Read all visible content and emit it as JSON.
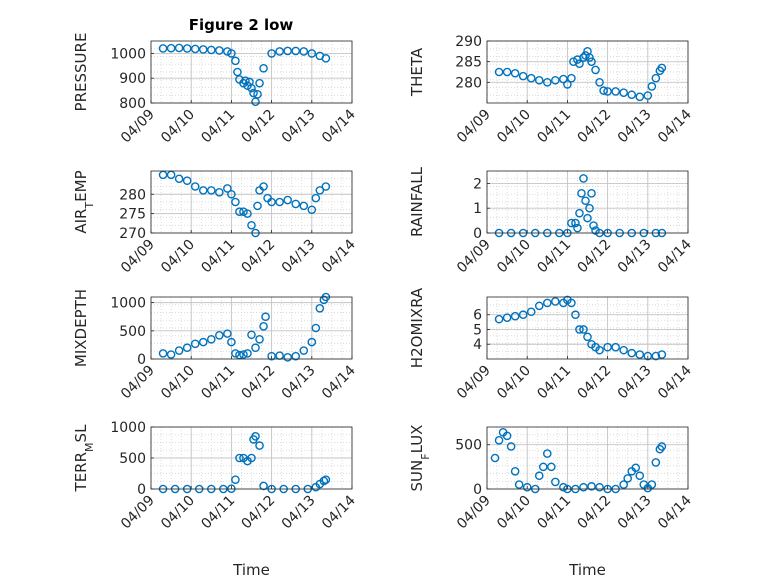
{
  "figure": {
    "title": "Figure 2 low",
    "marker_color": "#0072BD"
  },
  "chart_data": [
    {
      "type": "scatter",
      "title": "Figure 2 low",
      "ylabel": "PRESSURE",
      "xlabel": "",
      "ylim": [
        800,
        1050
      ],
      "yticks": [
        800,
        900,
        1000
      ],
      "xlim": [
        0,
        5
      ],
      "xticks": [
        0,
        1,
        2,
        3,
        4,
        5
      ],
      "xtick_labels": [
        "04/09",
        "04/10",
        "04/11",
        "04/12",
        "04/13",
        "04/14"
      ],
      "grid": true,
      "x": [
        0.3,
        0.5,
        0.7,
        0.9,
        1.1,
        1.3,
        1.5,
        1.7,
        1.9,
        2.0,
        2.1,
        2.15,
        2.2,
        2.3,
        2.35,
        2.4,
        2.45,
        2.5,
        2.55,
        2.6,
        2.65,
        2.7,
        2.8,
        3.0,
        3.2,
        3.4,
        3.6,
        3.8,
        4.0,
        4.2,
        4.35
      ],
      "y": [
        1020,
        1021,
        1022,
        1020,
        1018,
        1016,
        1014,
        1012,
        1008,
        1000,
        970,
        925,
        895,
        880,
        890,
        870,
        885,
        860,
        840,
        805,
        835,
        880,
        940,
        1000,
        1008,
        1010,
        1010,
        1008,
        1000,
        990,
        980
      ]
    },
    {
      "type": "scatter",
      "ylabel": "THETA",
      "xlabel": "",
      "ylim": [
        275,
        290
      ],
      "yticks": [
        280,
        285,
        290
      ],
      "xlim": [
        0,
        5
      ],
      "xticks": [
        0,
        1,
        2,
        3,
        4,
        5
      ],
      "xtick_labels": [
        "04/09",
        "04/10",
        "04/11",
        "04/12",
        "04/13",
        "04/14"
      ],
      "grid": true,
      "x": [
        0.3,
        0.5,
        0.7,
        0.9,
        1.1,
        1.3,
        1.5,
        1.7,
        1.9,
        2.0,
        2.1,
        2.15,
        2.25,
        2.3,
        2.4,
        2.45,
        2.5,
        2.55,
        2.6,
        2.7,
        2.8,
        2.9,
        3.0,
        3.2,
        3.4,
        3.6,
        3.8,
        4.0,
        4.1,
        4.2,
        4.3,
        4.35
      ],
      "y": [
        282.5,
        282.5,
        282.2,
        281.5,
        281.0,
        280.5,
        280.0,
        280.5,
        280.8,
        279.5,
        281.0,
        285.0,
        285.5,
        284.5,
        286.0,
        286.5,
        287.5,
        286.0,
        285.0,
        283.0,
        280.0,
        278.0,
        277.8,
        277.8,
        277.5,
        277.0,
        276.5,
        276.8,
        279.0,
        281.0,
        282.8,
        283.5
      ]
    },
    {
      "type": "scatter",
      "ylabel": "AIR_TEMP",
      "xlabel": "",
      "ylim": [
        270,
        286
      ],
      "yticks": [
        270,
        275,
        280
      ],
      "xlim": [
        0,
        5
      ],
      "xticks": [
        0,
        1,
        2,
        3,
        4,
        5
      ],
      "xtick_labels": [
        "04/09",
        "04/10",
        "04/11",
        "04/12",
        "04/13",
        "04/14"
      ],
      "grid": true,
      "x": [
        0.3,
        0.5,
        0.7,
        0.9,
        1.1,
        1.3,
        1.5,
        1.7,
        1.9,
        2.0,
        2.1,
        2.2,
        2.3,
        2.4,
        2.5,
        2.6,
        2.65,
        2.7,
        2.8,
        2.9,
        3.0,
        3.2,
        3.4,
        3.6,
        3.8,
        4.0,
        4.1,
        4.2,
        4.35
      ],
      "y": [
        285,
        285,
        284,
        283.5,
        282,
        281,
        281,
        280.5,
        281.5,
        280,
        278,
        275.5,
        275.5,
        275,
        272,
        270,
        277,
        281,
        282,
        279,
        278,
        278,
        278.5,
        277.5,
        277,
        276,
        279,
        281,
        282
      ]
    },
    {
      "type": "scatter",
      "ylabel": "RAINFALL",
      "xlabel": "",
      "ylim": [
        0,
        2.5
      ],
      "yticks": [
        0,
        1,
        2
      ],
      "xlim": [
        0,
        5
      ],
      "xticks": [
        0,
        1,
        2,
        3,
        4,
        5
      ],
      "xtick_labels": [
        "04/09",
        "04/10",
        "04/11",
        "04/12",
        "04/13",
        "04/14"
      ],
      "grid": true,
      "x": [
        0.3,
        0.6,
        0.9,
        1.2,
        1.5,
        1.8,
        2.0,
        2.1,
        2.2,
        2.25,
        2.3,
        2.35,
        2.4,
        2.45,
        2.5,
        2.55,
        2.6,
        2.65,
        2.7,
        2.8,
        3.0,
        3.3,
        3.6,
        3.9,
        4.2,
        4.35
      ],
      "y": [
        0,
        0,
        0,
        0,
        0,
        0,
        0,
        0.4,
        0.4,
        0.2,
        0.8,
        1.6,
        2.2,
        1.3,
        0.6,
        1.0,
        1.6,
        0.3,
        0.1,
        0,
        0,
        0,
        0,
        0,
        0,
        0
      ]
    },
    {
      "type": "scatter",
      "ylabel": "MIXDEPTH",
      "xlabel": "",
      "ylim": [
        0,
        1100
      ],
      "yticks": [
        0,
        500,
        1000
      ],
      "xlim": [
        0,
        5
      ],
      "xticks": [
        0,
        1,
        2,
        3,
        4,
        5
      ],
      "xtick_labels": [
        "04/09",
        "04/10",
        "04/11",
        "04/12",
        "04/13",
        "04/14"
      ],
      "grid": true,
      "x": [
        0.3,
        0.5,
        0.7,
        0.9,
        1.1,
        1.3,
        1.5,
        1.7,
        1.9,
        2.0,
        2.1,
        2.2,
        2.3,
        2.4,
        2.5,
        2.6,
        2.7,
        2.8,
        2.85,
        3.0,
        3.2,
        3.4,
        3.6,
        3.8,
        4.0,
        4.1,
        4.2,
        4.3,
        4.35
      ],
      "y": [
        100,
        80,
        150,
        200,
        270,
        300,
        350,
        420,
        450,
        300,
        100,
        70,
        80,
        100,
        430,
        200,
        350,
        580,
        750,
        50,
        60,
        30,
        50,
        150,
        300,
        550,
        900,
        1050,
        1100
      ]
    },
    {
      "type": "scatter",
      "ylabel": "H2OMIXRA",
      "xlabel": "",
      "ylim": [
        3,
        7.2
      ],
      "yticks": [
        4,
        5,
        6
      ],
      "xlim": [
        0,
        5
      ],
      "xticks": [
        0,
        1,
        2,
        3,
        4,
        5
      ],
      "xtick_labels": [
        "04/09",
        "04/10",
        "04/11",
        "04/12",
        "04/13",
        "04/14"
      ],
      "grid": true,
      "x": [
        0.3,
        0.5,
        0.7,
        0.9,
        1.1,
        1.3,
        1.5,
        1.7,
        1.9,
        2.0,
        2.1,
        2.2,
        2.3,
        2.4,
        2.5,
        2.6,
        2.7,
        2.8,
        3.0,
        3.2,
        3.4,
        3.6,
        3.8,
        4.0,
        4.2,
        4.35
      ],
      "y": [
        5.7,
        5.8,
        5.9,
        6.0,
        6.2,
        6.6,
        6.8,
        6.9,
        6.8,
        7.0,
        6.8,
        6.0,
        5.0,
        5.0,
        4.5,
        4.0,
        3.8,
        3.6,
        3.8,
        3.8,
        3.6,
        3.4,
        3.3,
        3.2,
        3.2,
        3.3
      ]
    },
    {
      "type": "scatter",
      "ylabel": "TERR_MSL",
      "xlabel": "Time",
      "ylim": [
        0,
        1000
      ],
      "yticks": [
        0,
        500,
        1000
      ],
      "xlim": [
        0,
        5
      ],
      "xticks": [
        0,
        1,
        2,
        3,
        4,
        5
      ],
      "xtick_labels": [
        "04/09",
        "04/10",
        "04/11",
        "04/12",
        "04/13",
        "04/14"
      ],
      "grid": true,
      "x": [
        0.3,
        0.6,
        0.9,
        1.2,
        1.5,
        1.8,
        2.0,
        2.1,
        2.2,
        2.3,
        2.4,
        2.5,
        2.55,
        2.6,
        2.7,
        2.8,
        3.0,
        3.3,
        3.6,
        3.9,
        4.1,
        4.2,
        4.3,
        4.35
      ],
      "y": [
        0,
        0,
        0,
        0,
        0,
        0,
        5,
        150,
        500,
        500,
        450,
        500,
        800,
        850,
        700,
        50,
        0,
        0,
        0,
        0,
        30,
        80,
        130,
        150
      ]
    },
    {
      "type": "scatter",
      "ylabel": "SUN_FLUX",
      "xlabel": "Time",
      "ylim": [
        0,
        700
      ],
      "yticks": [
        0,
        500
      ],
      "xlim": [
        0,
        5
      ],
      "xticks": [
        0,
        1,
        2,
        3,
        4,
        5
      ],
      "xtick_labels": [
        "04/09",
        "04/10",
        "04/11",
        "04/12",
        "04/13",
        "04/14"
      ],
      "grid": true,
      "x": [
        0.2,
        0.3,
        0.4,
        0.5,
        0.6,
        0.7,
        0.8,
        1.0,
        1.2,
        1.3,
        1.4,
        1.5,
        1.6,
        1.7,
        1.9,
        2.0,
        2.2,
        2.4,
        2.6,
        2.8,
        3.0,
        3.2,
        3.4,
        3.5,
        3.6,
        3.7,
        3.8,
        3.9,
        4.0,
        4.1,
        4.2,
        4.3,
        4.35
      ],
      "y": [
        350,
        550,
        640,
        600,
        480,
        200,
        50,
        20,
        0,
        150,
        250,
        400,
        250,
        80,
        20,
        0,
        0,
        20,
        30,
        20,
        0,
        0,
        50,
        120,
        200,
        240,
        150,
        50,
        10,
        50,
        300,
        450,
        480
      ]
    }
  ]
}
